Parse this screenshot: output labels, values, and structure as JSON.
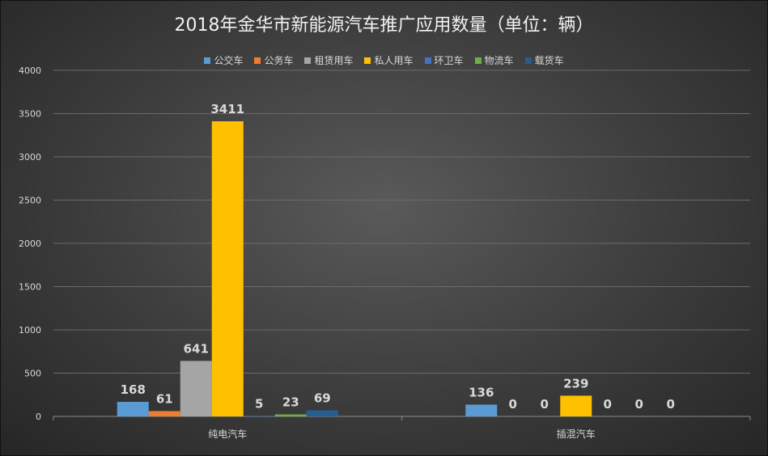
{
  "chart_data": {
    "type": "bar",
    "title": "2018年金华市新能源汽车推广应用数量（单位：辆）",
    "categories": [
      "纯电汽车",
      "插混汽车"
    ],
    "series": [
      {
        "name": "公交车",
        "color": "#5b9bd5",
        "values": [
          168,
          136
        ]
      },
      {
        "name": "公务车",
        "color": "#ed7d31",
        "values": [
          61,
          0
        ]
      },
      {
        "name": "租赁用车",
        "color": "#a5a5a5",
        "values": [
          641,
          0
        ]
      },
      {
        "name": "私人用车",
        "color": "#ffc000",
        "values": [
          3411,
          239
        ]
      },
      {
        "name": "环卫车",
        "color": "#4472c4",
        "values": [
          5,
          0
        ]
      },
      {
        "name": "物流车",
        "color": "#70ad47",
        "values": [
          23,
          0
        ]
      },
      {
        "name": "载货车",
        "color": "#255e91",
        "values": [
          69,
          0
        ]
      }
    ],
    "ylim": [
      0,
      4000
    ],
    "yticks": [
      0,
      500,
      1000,
      1500,
      2000,
      2500,
      3000,
      3500,
      4000
    ],
    "grid": true,
    "legend": "top",
    "xlabel": "",
    "ylabel": ""
  }
}
